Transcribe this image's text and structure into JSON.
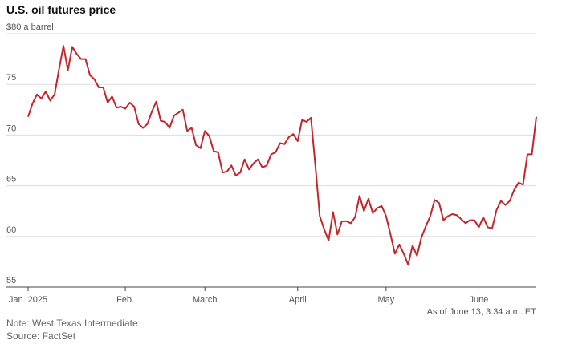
{
  "chart_data": {
    "type": "line",
    "title": "U.S. oil futures price",
    "annotation": "As of June 13, 3:34 a.m. ET",
    "note": "Note: West Texas Intermediate",
    "source": "Source: FactSet",
    "color": "#c0272d",
    "grid": true,
    "ylim": [
      55,
      80
    ],
    "yticks": [
      55,
      60,
      65,
      70,
      75,
      {
        "value": 80,
        "label": "$80 a barrel"
      }
    ],
    "categories": [
      "Jan. 2025",
      null,
      null,
      null,
      null,
      null,
      null,
      null,
      null,
      null,
      null,
      null,
      null,
      null,
      null,
      null,
      null,
      null,
      null,
      null,
      null,
      null,
      "Feb.",
      null,
      null,
      null,
      null,
      null,
      null,
      null,
      null,
      null,
      null,
      null,
      null,
      null,
      null,
      null,
      null,
      null,
      "March",
      null,
      null,
      null,
      null,
      null,
      null,
      null,
      null,
      null,
      null,
      null,
      null,
      null,
      null,
      null,
      null,
      null,
      null,
      null,
      null,
      "April",
      null,
      null,
      null,
      null,
      null,
      null,
      null,
      null,
      null,
      null,
      null,
      null,
      null,
      null,
      null,
      null,
      null,
      null,
      null,
      "May",
      null,
      null,
      null,
      null,
      null,
      null,
      null,
      null,
      null,
      null,
      null,
      null,
      null,
      null,
      null,
      null,
      null,
      null,
      null,
      null,
      "June",
      null,
      null,
      null,
      null,
      null,
      null,
      null,
      null,
      null,
      null,
      null,
      null,
      null
    ],
    "values": [
      71.8,
      73.1,
      74.0,
      73.6,
      74.3,
      73.4,
      74.0,
      76.5,
      78.8,
      76.4,
      78.7,
      78.0,
      77.5,
      77.5,
      75.9,
      75.5,
      74.7,
      74.7,
      73.2,
      73.8,
      72.7,
      72.8,
      72.6,
      73.2,
      72.8,
      71.1,
      70.7,
      71.1,
      72.3,
      73.3,
      71.4,
      71.3,
      70.7,
      71.9,
      72.2,
      72.5,
      70.4,
      70.7,
      69.0,
      68.7,
      70.4,
      69.9,
      68.4,
      68.3,
      66.3,
      66.4,
      67.0,
      66.0,
      66.3,
      67.6,
      66.6,
      67.2,
      67.6,
      66.8,
      67.0,
      68.1,
      68.3,
      69.2,
      69.1,
      69.8,
      70.1,
      69.4,
      71.5,
      71.3,
      71.7,
      67.0,
      62.0,
      60.7,
      59.6,
      62.4,
      60.2,
      61.5,
      61.5,
      61.3,
      61.9,
      64.0,
      62.5,
      63.7,
      62.3,
      62.8,
      63.0,
      62.0,
      60.2,
      58.3,
      59.2,
      58.3,
      57.2,
      59.1,
      58.1,
      59.9,
      61.0,
      62.0,
      63.6,
      63.3,
      61.6,
      62.0,
      62.2,
      62.1,
      61.7,
      61.3,
      61.6,
      61.6,
      60.9,
      61.9,
      60.9,
      60.8,
      62.6,
      63.5,
      63.1,
      63.5,
      64.6,
      65.3,
      65.1,
      68.1,
      68.1,
      71.8
    ]
  }
}
